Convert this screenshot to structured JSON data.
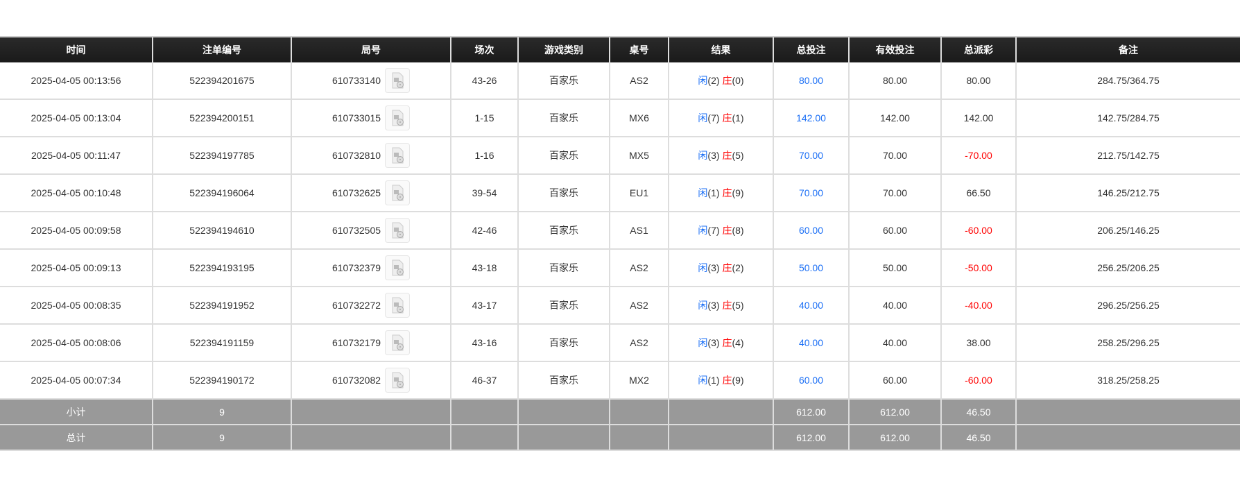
{
  "headers": [
    "时间",
    "注单编号",
    "局号",
    "场次",
    "游戏类别",
    "桌号",
    "结果",
    "总投注",
    "有效投注",
    "总派彩",
    "备注"
  ],
  "result_labels": {
    "player": "闲",
    "banker": "庄"
  },
  "rows": [
    {
      "time": "2025-04-05 00:13:56",
      "bet_id": "522394201675",
      "round": "610733140",
      "shoe": "43-26",
      "game": "百家乐",
      "table": "AS2",
      "player": "(2)",
      "banker": "(0)",
      "total_bet": "80.00",
      "valid_bet": "80.00",
      "payout": "80.00",
      "payout_negative": false,
      "note": "284.75/364.75"
    },
    {
      "time": "2025-04-05 00:13:04",
      "bet_id": "522394200151",
      "round": "610733015",
      "shoe": "1-15",
      "game": "百家乐",
      "table": "MX6",
      "player": "(7)",
      "banker": "(1)",
      "total_bet": "142.00",
      "valid_bet": "142.00",
      "payout": "142.00",
      "payout_negative": false,
      "note": "142.75/284.75"
    },
    {
      "time": "2025-04-05 00:11:47",
      "bet_id": "522394197785",
      "round": "610732810",
      "shoe": "1-16",
      "game": "百家乐",
      "table": "MX5",
      "player": "(3)",
      "banker": "(5)",
      "total_bet": "70.00",
      "valid_bet": "70.00",
      "payout": "-70.00",
      "payout_negative": true,
      "note": "212.75/142.75"
    },
    {
      "time": "2025-04-05 00:10:48",
      "bet_id": "522394196064",
      "round": "610732625",
      "shoe": "39-54",
      "game": "百家乐",
      "table": "EU1",
      "player": "(1)",
      "banker": "(9)",
      "total_bet": "70.00",
      "valid_bet": "70.00",
      "payout": "66.50",
      "payout_negative": false,
      "note": "146.25/212.75"
    },
    {
      "time": "2025-04-05 00:09:58",
      "bet_id": "522394194610",
      "round": "610732505",
      "shoe": "42-46",
      "game": "百家乐",
      "table": "AS1",
      "player": "(7)",
      "banker": "(8)",
      "total_bet": "60.00",
      "valid_bet": "60.00",
      "payout": "-60.00",
      "payout_negative": true,
      "note": "206.25/146.25"
    },
    {
      "time": "2025-04-05 00:09:13",
      "bet_id": "522394193195",
      "round": "610732379",
      "shoe": "43-18",
      "game": "百家乐",
      "table": "AS2",
      "player": "(3)",
      "banker": "(2)",
      "total_bet": "50.00",
      "valid_bet": "50.00",
      "payout": "-50.00",
      "payout_negative": true,
      "note": "256.25/206.25"
    },
    {
      "time": "2025-04-05 00:08:35",
      "bet_id": "522394191952",
      "round": "610732272",
      "shoe": "43-17",
      "game": "百家乐",
      "table": "AS2",
      "player": "(3)",
      "banker": "(5)",
      "total_bet": "40.00",
      "valid_bet": "40.00",
      "payout": "-40.00",
      "payout_negative": true,
      "note": "296.25/256.25"
    },
    {
      "time": "2025-04-05 00:08:06",
      "bet_id": "522394191159",
      "round": "610732179",
      "shoe": "43-16",
      "game": "百家乐",
      "table": "AS2",
      "player": "(3)",
      "banker": "(4)",
      "total_bet": "40.00",
      "valid_bet": "40.00",
      "payout": "38.00",
      "payout_negative": false,
      "note": "258.25/296.25"
    },
    {
      "time": "2025-04-05 00:07:34",
      "bet_id": "522394190172",
      "round": "610732082",
      "shoe": "46-37",
      "game": "百家乐",
      "table": "MX2",
      "player": "(1)",
      "banker": "(9)",
      "total_bet": "60.00",
      "valid_bet": "60.00",
      "payout": "-60.00",
      "payout_negative": true,
      "note": "318.25/258.25"
    }
  ],
  "subtotal": {
    "label": "小计",
    "count": "9",
    "total_bet": "612.00",
    "valid_bet": "612.00",
    "payout": "46.50"
  },
  "total": {
    "label": "总计",
    "count": "9",
    "total_bet": "612.00",
    "valid_bet": "612.00",
    "payout": "46.50"
  },
  "colors": {
    "header_bg": "#1c1c1c",
    "summary_bg": "#999999",
    "bet_blue": "#1a6ef5",
    "negative_red": "#ff0000"
  },
  "icons": {
    "round_replay": "video-file-icon"
  }
}
